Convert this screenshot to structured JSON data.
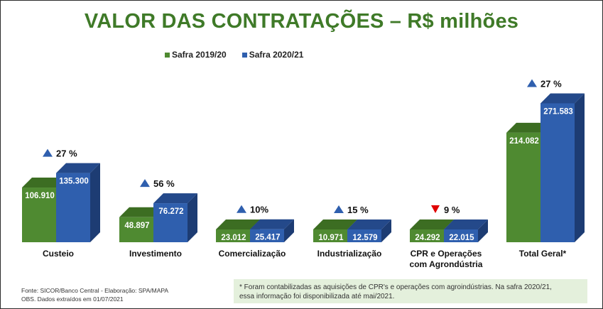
{
  "title": "VALOR DAS CONTRATAÇÕES – R$ milhões",
  "colors": {
    "title": "#3f7a28",
    "series1_front": "#4f8a31",
    "series1_top": "#3c6d22",
    "series1_side": "#335d1d",
    "series2_front": "#2f5fae",
    "series2_top": "#24498a",
    "series2_side": "#1d3c73",
    "up": "#2f5fae",
    "down": "#e00000"
  },
  "chart_data": {
    "type": "bar",
    "categories": [
      "Custeio",
      "Investimento",
      "Comercialização",
      "Industrialização",
      "CPR e Operações com Agrondústria",
      "Total Geral*"
    ],
    "category_lines": [
      [
        "Custeio"
      ],
      [
        "Investimento"
      ],
      [
        "Comercialização"
      ],
      [
        "Industrialização"
      ],
      [
        "CPR e Operações",
        "com Agrondústria"
      ],
      [
        "Total Geral*"
      ]
    ],
    "series": [
      {
        "name": "Safra 2019/20",
        "values": [
          106.91,
          48.897,
          23.012,
          10.971,
          24.292,
          214.082
        ],
        "labels": [
          "106.910",
          "48.897",
          "23.012",
          "10.971",
          "24.292",
          "214.082"
        ]
      },
      {
        "name": "Safra 2020/21",
        "values": [
          135.3,
          76.272,
          25.417,
          12.579,
          22.015,
          271.583
        ],
        "labels": [
          "135.300",
          "76.272",
          "25.417",
          "12.579",
          "22.015",
          "271.583"
        ]
      }
    ],
    "changes": [
      {
        "label": "27 %",
        "direction": "up"
      },
      {
        "label": "56 %",
        "direction": "up"
      },
      {
        "label": "10%",
        "direction": "up"
      },
      {
        "label": "15 %",
        "direction": "up"
      },
      {
        "label": "9 %",
        "direction": "down"
      },
      {
        "label": "27 %",
        "direction": "up"
      }
    ],
    "legend_position": "top",
    "grid": false
  },
  "footer": {
    "source": "Fonte: SICOR/Banco Central - Elaboração: SPA/MAPA",
    "obs": "OBS. Dados extraídos em 01/07/2021"
  },
  "note": {
    "line1": "* Foram contabilizadas as aquisições de CPR's e operações com agroindústrias. Na safra 2020/21,",
    "line2": "essa informação foi disponibilizada até mai/2021."
  }
}
